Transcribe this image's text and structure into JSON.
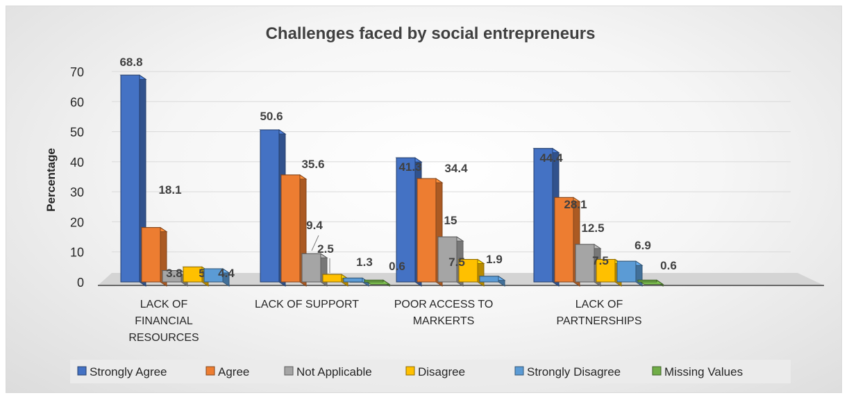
{
  "chart_data": {
    "type": "bar",
    "title": "Challenges faced by social entrepreneurs",
    "ylabel": "Percentage",
    "xlabel": "",
    "ylim": [
      0,
      70
    ],
    "yticks": [
      "0",
      "10",
      "20",
      "30",
      "40",
      "50",
      "60",
      "70"
    ],
    "grid": true,
    "legend_position": "bottom",
    "categories": [
      [
        "LACK OF",
        "FINANCIAL",
        "RESOURCES"
      ],
      [
        "LACK OF SUPPORT"
      ],
      [
        "POOR ACCESS TO",
        "MARKERTS"
      ],
      [
        "LACK OF",
        "PARTNERSHIPS"
      ]
    ],
    "series": [
      {
        "name": "Strongly Agree",
        "color": "#4472C4",
        "values": [
          68.8,
          50.6,
          41.3,
          44.4
        ],
        "labels": [
          "68.8",
          "50.6",
          "41.3",
          "44.4"
        ]
      },
      {
        "name": "Agree",
        "color": "#ED7D31",
        "values": [
          18.1,
          35.6,
          34.4,
          28.1
        ],
        "labels": [
          "18.1",
          "35.6",
          "34.4",
          "28.1"
        ]
      },
      {
        "name": "Not Applicable",
        "color": "#A5A5A5",
        "values": [
          3.8,
          9.4,
          15,
          12.5
        ],
        "labels": [
          "3.8",
          "9.4",
          "15",
          "12.5"
        ]
      },
      {
        "name": "Disagree",
        "color": "#FFC000",
        "values": [
          5,
          2.5,
          7.5,
          7.5
        ],
        "labels": [
          "5",
          "2.5",
          "7.5",
          "7.5"
        ]
      },
      {
        "name": "Strongly Disagree",
        "color": "#5B9BD5",
        "values": [
          4.4,
          1.3,
          1.9,
          6.9
        ],
        "labels": [
          "4.4",
          "1.3",
          "1.9",
          "6.9"
        ]
      },
      {
        "name": "Missing Values",
        "color": "#70AD47",
        "values": [
          null,
          0.6,
          null,
          0.6
        ],
        "labels": [
          null,
          "0.6",
          null,
          "0.6"
        ]
      }
    ]
  }
}
